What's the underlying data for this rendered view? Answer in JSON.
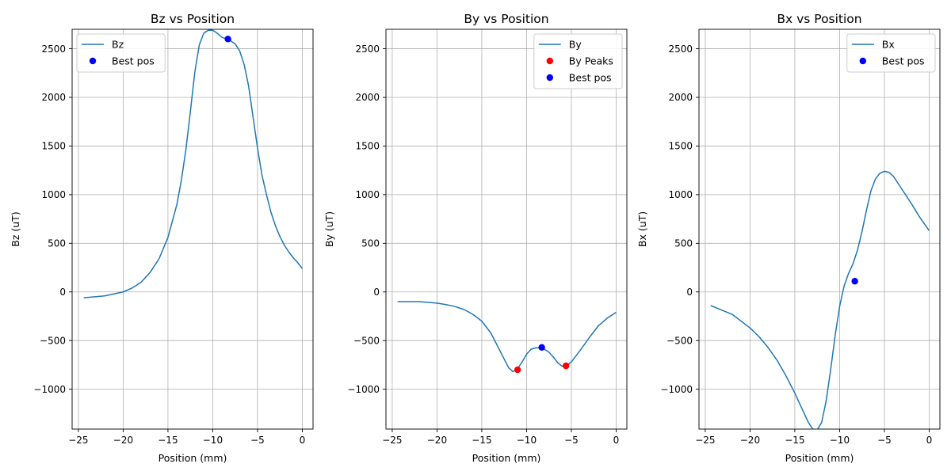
{
  "chart_data": [
    {
      "type": "line",
      "title": "Bz vs Position",
      "xlabel": "Position (mm)",
      "ylabel": "Bz (uT)",
      "xlim": [
        -25.7,
        1.2
      ],
      "ylim": [
        -1410,
        2700
      ],
      "xticks": [
        -25,
        -20,
        -15,
        -10,
        -5,
        0
      ],
      "xtick_labels": [
        "−25",
        "−20",
        "−15",
        "−10",
        "−5",
        "0"
      ],
      "yticks": [
        -1000,
        -500,
        0,
        500,
        1000,
        1500,
        2000,
        2500
      ],
      "ytick_labels": [
        "−1000",
        "−500",
        "0",
        "500",
        "1000",
        "1500",
        "2000",
        "2500"
      ],
      "grid": true,
      "legend_position": "upper-left",
      "series": [
        {
          "name": "Bz",
          "kind": "line",
          "color": "#1f77b4",
          "x": [
            -24.4,
            -22,
            -20,
            -19,
            -18,
            -17,
            -16,
            -15,
            -14,
            -13.5,
            -13,
            -12.5,
            -12,
            -11.5,
            -11,
            -10.5,
            -10,
            -9.5,
            -9,
            -8.5,
            -8,
            -7.5,
            -7,
            -6.5,
            -6,
            -5.5,
            -5,
            -4.5,
            -4,
            -3.5,
            -3,
            -2.5,
            -2,
            -1.5,
            -1,
            -0.5,
            0
          ],
          "y": [
            -60,
            -40,
            0,
            40,
            100,
            200,
            340,
            560,
            900,
            1150,
            1460,
            1850,
            2260,
            2540,
            2660,
            2690,
            2690,
            2660,
            2620,
            2600,
            2580,
            2550,
            2480,
            2340,
            2120,
            1800,
            1480,
            1200,
            1000,
            820,
            680,
            570,
            480,
            410,
            350,
            300,
            240
          ]
        },
        {
          "name": "Best pos",
          "kind": "scatter",
          "color": "#0000ff",
          "x": [
            -8.3
          ],
          "y": [
            2600
          ]
        }
      ]
    },
    {
      "type": "line",
      "title": "By vs Position",
      "xlabel": "Position (mm)",
      "ylabel": "By (uT)",
      "xlim": [
        -25.7,
        1.2
      ],
      "ylim": [
        -1410,
        2700
      ],
      "xticks": [
        -25,
        -20,
        -15,
        -10,
        -5,
        0
      ],
      "xtick_labels": [
        "−25",
        "−20",
        "−15",
        "−10",
        "−5",
        "0"
      ],
      "yticks": [
        -1000,
        -500,
        0,
        500,
        1000,
        1500,
        2000,
        2500
      ],
      "ytick_labels": [
        "−1000",
        "−500",
        "0",
        "500",
        "1000",
        "1500",
        "2000",
        "2500"
      ],
      "grid": true,
      "legend_position": "upper-right",
      "series": [
        {
          "name": "By",
          "kind": "line",
          "color": "#1f77b4",
          "x": [
            -24.4,
            -23.5,
            -22,
            -20,
            -19,
            -18,
            -17,
            -16,
            -15,
            -14,
            -13,
            -12,
            -11.5,
            -11,
            -10.5,
            -10,
            -9.5,
            -9,
            -8.5,
            -8,
            -7.5,
            -7,
            -6.5,
            -6,
            -5.5,
            -5,
            -4.5,
            -4,
            -3,
            -2,
            -1,
            0
          ],
          "y": [
            -100,
            -100,
            -100,
            -115,
            -130,
            -150,
            -180,
            -230,
            -300,
            -420,
            -600,
            -780,
            -820,
            -790,
            -720,
            -640,
            -590,
            -575,
            -575,
            -590,
            -620,
            -670,
            -730,
            -765,
            -760,
            -720,
            -660,
            -600,
            -470,
            -350,
            -270,
            -210
          ]
        },
        {
          "name": "By Peaks",
          "kind": "scatter",
          "color": "#ff0000",
          "x": [
            -11.0,
            -5.6
          ],
          "y": [
            -800,
            -760
          ]
        },
        {
          "name": "Best pos",
          "kind": "scatter",
          "color": "#0000ff",
          "x": [
            -8.3
          ],
          "y": [
            -570
          ]
        }
      ]
    },
    {
      "type": "line",
      "title": "Bx vs Position",
      "xlabel": "Position (mm)",
      "ylabel": "Bx (uT)",
      "xlim": [
        -25.7,
        1.2
      ],
      "ylim": [
        -1410,
        2700
      ],
      "xticks": [
        -25,
        -20,
        -15,
        -10,
        -5,
        0
      ],
      "xtick_labels": [
        "−25",
        "−20",
        "−15",
        "−10",
        "−5",
        "0"
      ],
      "yticks": [
        -1000,
        -500,
        0,
        500,
        1000,
        1500,
        2000,
        2500
      ],
      "ytick_labels": [
        "−1000",
        "−500",
        "0",
        "500",
        "1000",
        "1500",
        "2000",
        "2500"
      ],
      "grid": true,
      "legend_position": "upper-right",
      "series": [
        {
          "name": "Bx",
          "kind": "line",
          "color": "#1f77b4",
          "x": [
            -24.4,
            -22,
            -20,
            -19,
            -18,
            -17,
            -16,
            -15,
            -14,
            -13.5,
            -13,
            -12.5,
            -12,
            -11.5,
            -11,
            -10.5,
            -10,
            -9.5,
            -9,
            -8.5,
            -8,
            -7.5,
            -7,
            -6.5,
            -6,
            -5.5,
            -5,
            -4.5,
            -4,
            -3.5,
            -3,
            -2.5,
            -2,
            -1,
            0
          ],
          "y": [
            -140,
            -230,
            -370,
            -460,
            -570,
            -700,
            -860,
            -1040,
            -1240,
            -1340,
            -1410,
            -1420,
            -1340,
            -1120,
            -800,
            -450,
            -150,
            60,
            190,
            290,
            430,
            620,
            840,
            1040,
            1160,
            1220,
            1240,
            1230,
            1190,
            1120,
            1050,
            980,
            910,
            760,
            630
          ]
        },
        {
          "name": "Best pos",
          "kind": "scatter",
          "color": "#0000ff",
          "x": [
            -8.3
          ],
          "y": [
            110
          ]
        }
      ]
    }
  ]
}
